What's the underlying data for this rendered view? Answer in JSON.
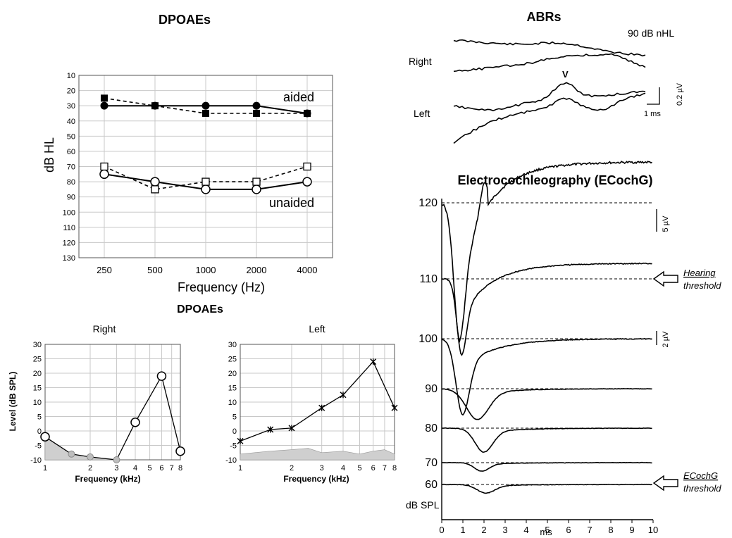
{
  "chart_data": [
    {
      "type": "line",
      "title": "DPOAEs",
      "xlabel": "Frequency (Hz)",
      "ylabel": "dB HL",
      "categories": [
        "250",
        "500",
        "1000",
        "2000",
        "4000"
      ],
      "y_ticks": [
        10,
        20,
        30,
        40,
        50,
        60,
        70,
        80,
        90,
        100,
        110,
        120,
        130
      ],
      "ylim": [
        10,
        130
      ],
      "y_inverted": true,
      "grid": true,
      "annotations": [
        "aided",
        "unaided"
      ],
      "series": [
        {
          "condition": "aided",
          "marker": "filled-circle",
          "line": "solid",
          "values": [
            30,
            30,
            30,
            30,
            35
          ]
        },
        {
          "condition": "aided",
          "marker": "filled-square",
          "line": "dashed",
          "values": [
            25,
            30,
            35,
            35,
            35
          ]
        },
        {
          "condition": "unaided",
          "marker": "open-circle",
          "line": "solid",
          "values": [
            75,
            80,
            85,
            85,
            80
          ]
        },
        {
          "condition": "unaided",
          "marker": "open-square",
          "line": "dashed",
          "values": [
            70,
            85,
            80,
            80,
            70
          ]
        }
      ]
    },
    {
      "type": "line",
      "title": "DPOAEs",
      "subtitle": "Right",
      "xlabel": "Frequency (kHz)",
      "ylabel": "Level (dB SPL)",
      "x_scale": "log",
      "x_ticks": [
        "1",
        "2",
        "3",
        "4",
        "5",
        "6",
        "7",
        "8"
      ],
      "y_ticks": [
        30,
        25,
        20,
        15,
        10,
        5,
        0,
        -5,
        -10
      ],
      "ylim": [
        -10,
        30
      ],
      "grid": true,
      "series": [
        {
          "marker": "open-circle",
          "x": [
            1.0,
            1.5,
            2.0,
            3.0,
            4.0,
            6.0,
            8.0
          ],
          "values": [
            -2,
            -8,
            -9,
            -10,
            3,
            19,
            -7
          ]
        }
      ],
      "noise_floor": {
        "x": [
          1.0,
          1.5,
          2.0,
          3.0
        ],
        "values": [
          -2,
          -8,
          -9,
          -10
        ]
      }
    },
    {
      "type": "line",
      "subtitle": "Left",
      "xlabel": "Frequency (kHz)",
      "x_scale": "log",
      "x_ticks": [
        "1",
        "2",
        "3",
        "4",
        "5",
        "6",
        "7",
        "8"
      ],
      "y_ticks": [
        30,
        25,
        20,
        15,
        10,
        5,
        0,
        -5,
        -10
      ],
      "ylim": [
        -10,
        30
      ],
      "grid": true,
      "series": [
        {
          "marker": "star",
          "x": [
            1.0,
            1.5,
            2.0,
            3.0,
            4.0,
            6.0,
            8.0
          ],
          "values": [
            -3.5,
            0.5,
            1,
            8,
            12.5,
            24,
            8
          ]
        }
      ],
      "noise_floor": {
        "x": [
          1.0,
          1.5,
          2.0,
          2.5,
          3.0,
          4.0,
          5.0,
          6.0,
          7.0,
          8.0
        ],
        "values": [
          -8,
          -7,
          -6.5,
          -6,
          -7.5,
          -7,
          -8,
          -7,
          -6.5,
          -8
        ]
      }
    },
    {
      "type": "line",
      "title": "ABRs",
      "level_label": "90 dB nHL",
      "traces": [
        "Right",
        "Left"
      ],
      "peak_label": "V",
      "scale_time": "1 ms",
      "scale_amplitude": "0.2 µV"
    },
    {
      "type": "line",
      "title": "Electrocochleography (ECochG)",
      "xlabel": "ms",
      "x_ticks": [
        "0",
        "1",
        "2",
        "3",
        "4",
        "5",
        "6",
        "7",
        "8",
        "9",
        "10"
      ],
      "xlim": [
        0,
        10
      ],
      "y_unit": "dB SPL",
      "levels": [
        "120",
        "110",
        "100",
        "90",
        "80",
        "70",
        "60"
      ],
      "scale_bars": [
        "5 µV",
        "2 µV"
      ],
      "annotations": [
        {
          "level": "110",
          "lines": [
            "Hearing",
            "threshold"
          ]
        },
        {
          "level": "60",
          "lines": [
            "ECochG",
            "threshold"
          ]
        }
      ]
    }
  ]
}
